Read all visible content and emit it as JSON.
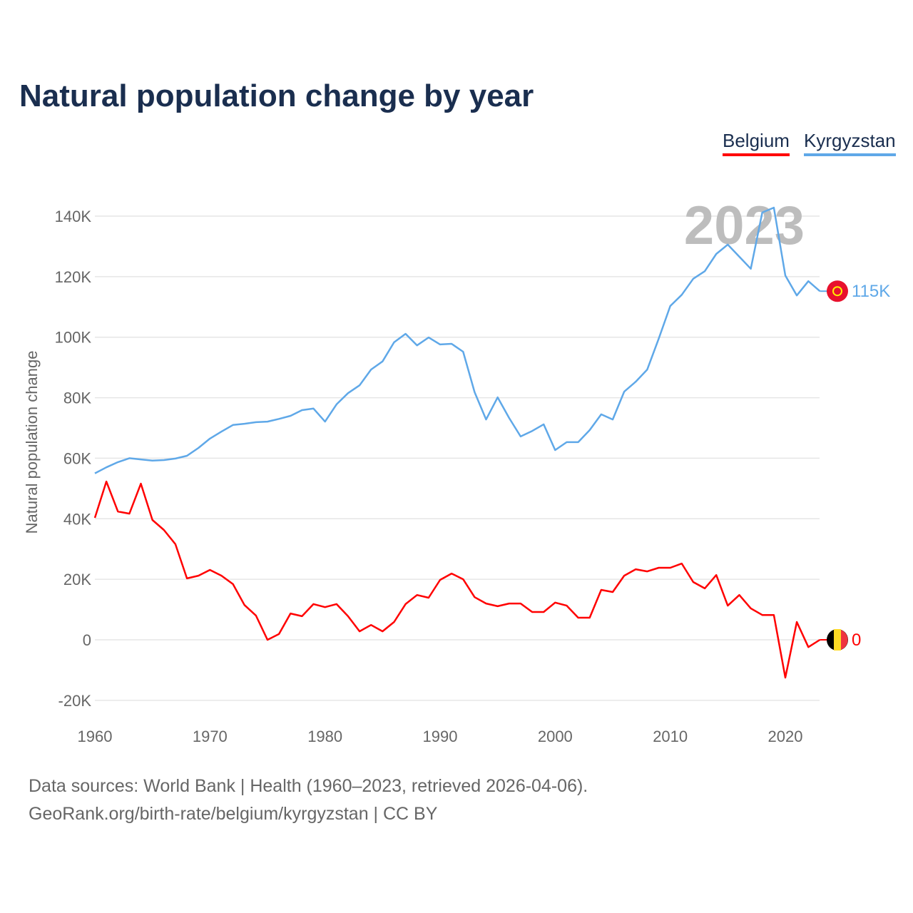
{
  "chart_data": {
    "type": "line",
    "title": "Natural population change by year",
    "ylabel": "Natural population change",
    "xlabel": "",
    "xlim": [
      1960,
      2023
    ],
    "ylim": [
      -20000,
      140000
    ],
    "x_ticks": [
      1960,
      1970,
      1980,
      1990,
      2000,
      2010,
      2020
    ],
    "y_ticks": [
      -20000,
      0,
      20000,
      40000,
      60000,
      80000,
      100000,
      120000,
      140000
    ],
    "y_tick_labels": [
      "-20K",
      "0",
      "20K",
      "40K",
      "60K",
      "80K",
      "100K",
      "120K",
      "140K"
    ],
    "grid": true,
    "legend_position": "top-right",
    "year_label": "2023",
    "x": [
      1960,
      1961,
      1962,
      1963,
      1964,
      1965,
      1966,
      1967,
      1968,
      1969,
      1970,
      1971,
      1972,
      1973,
      1974,
      1975,
      1976,
      1977,
      1978,
      1979,
      1980,
      1981,
      1982,
      1983,
      1984,
      1985,
      1986,
      1987,
      1988,
      1989,
      1990,
      1991,
      1992,
      1993,
      1994,
      1995,
      1996,
      1997,
      1998,
      1999,
      2000,
      2001,
      2002,
      2003,
      2004,
      2005,
      2006,
      2007,
      2008,
      2009,
      2010,
      2011,
      2012,
      2013,
      2014,
      2015,
      2016,
      2017,
      2018,
      2019,
      2020,
      2021,
      2022,
      2023
    ],
    "series": [
      {
        "name": "Belgium",
        "color": "#ff0000",
        "end_label": "0",
        "values": [
          40300,
          52300,
          42400,
          41700,
          51600,
          39600,
          36300,
          31600,
          20300,
          21200,
          23100,
          21200,
          18400,
          11500,
          8000,
          0,
          1900,
          8700,
          7800,
          11800,
          10800,
          11800,
          7800,
          2800,
          4900,
          2800,
          5900,
          11800,
          14800,
          13900,
          19800,
          21900,
          20000,
          14100,
          12000,
          11100,
          12000,
          12000,
          9200,
          9200,
          12300,
          11300,
          7300,
          7300,
          16500,
          15800,
          21200,
          23300,
          22600,
          23800,
          23800,
          25200,
          19100,
          17000,
          21400,
          11300,
          14800,
          10400,
          8200,
          8200,
          -12500,
          5900,
          -2400,
          0
        ]
      },
      {
        "name": "Kyrgyzstan",
        "color": "#5fa8e8",
        "end_label": "115K",
        "values": [
          55000,
          57000,
          58700,
          60000,
          59600,
          59200,
          59400,
          59900,
          60800,
          63400,
          66500,
          68800,
          71000,
          71400,
          71900,
          72100,
          73000,
          74000,
          75900,
          76400,
          72100,
          77800,
          81500,
          84100,
          89300,
          92000,
          98300,
          101100,
          97300,
          99900,
          97600,
          97800,
          95200,
          81800,
          72800,
          80100,
          73300,
          67200,
          69000,
          71200,
          62700,
          65300,
          65300,
          69300,
          74500,
          72800,
          82000,
          85300,
          89300,
          99500,
          110300,
          114000,
          119300,
          121800,
          127500,
          130600,
          126600,
          122600,
          141200,
          142800,
          120400,
          113800,
          118500,
          115200
        ]
      }
    ]
  },
  "footer": {
    "source_line": "Data sources: World Bank | Health (1960–2023, retrieved 2026-04-06).",
    "credit_line": "GeoRank.org/birth-rate/belgium/kyrgyzstan | CC BY"
  }
}
